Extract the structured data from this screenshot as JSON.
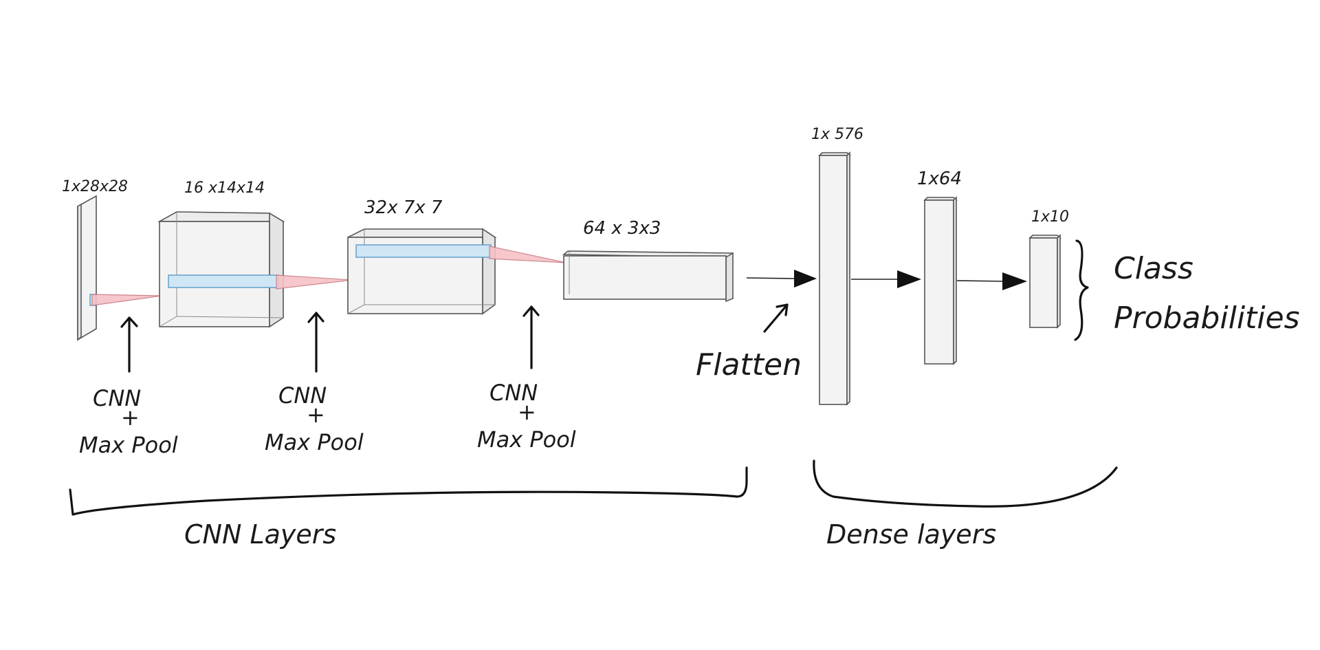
{
  "diagram": {
    "shapes": {
      "input": "1x28x28",
      "conv1": "16 x14x14",
      "conv2": "32x 7x 7",
      "conv3": "64 x 3x3",
      "dense1": "1x 576",
      "dense2": "1x64",
      "dense3": "1x10"
    },
    "ops": {
      "op1_line1": "CNN",
      "op1_line2": "+",
      "op1_line3": "Max Pool",
      "op2_line1": "CNN",
      "op2_line2": "+",
      "op2_line3": "Max Pool",
      "op3_line1": "CNN",
      "op3_line2": "+",
      "op3_line3": "Max Pool"
    },
    "flatten_label": "Flatten",
    "output_label_line1": "Class",
    "output_label_line2": "Probabilities",
    "groups": {
      "cnn": "CNN Layers",
      "dense": "Dense layers"
    },
    "colors": {
      "filter": "#cfe6f5",
      "receptive_field": "#f6c2c6",
      "block": "#f3f3f3",
      "ink": "#111111"
    }
  }
}
